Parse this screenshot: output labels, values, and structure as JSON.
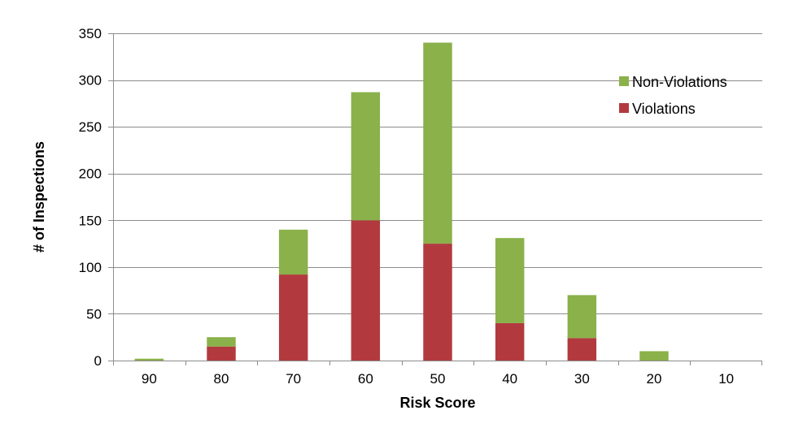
{
  "chart_data": {
    "type": "bar",
    "stacked": true,
    "title": "",
    "xlabel": "Risk Score",
    "ylabel": "# of Inspections",
    "categories": [
      "90",
      "80",
      "70",
      "60",
      "50",
      "40",
      "30",
      "20",
      "10"
    ],
    "series": [
      {
        "name": "Violations",
        "color": "#b23a3e",
        "values": [
          0,
          15,
          92,
          150,
          125,
          40,
          24,
          0,
          0
        ]
      },
      {
        "name": "Non-Violations",
        "color": "#8ab14a",
        "values": [
          2,
          10,
          48,
          137,
          215,
          91,
          46,
          10,
          0
        ]
      }
    ],
    "ylim": [
      0,
      350
    ],
    "yticks": [
      "0",
      "50",
      "100",
      "150",
      "200",
      "250",
      "300",
      "350"
    ],
    "grid": true,
    "legend": {
      "position": "top-right",
      "order": [
        "Non-Violations",
        "Violations"
      ]
    }
  }
}
